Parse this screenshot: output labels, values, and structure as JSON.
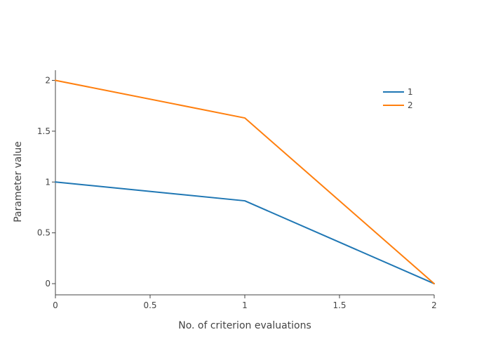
{
  "chart_data": {
    "type": "line",
    "title": "",
    "xlabel": "No. of criterion evaluations",
    "ylabel": "Parameter value",
    "xlim": [
      0,
      2
    ],
    "ylim": [
      -0.11,
      2.1
    ],
    "xticks": [
      0,
      0.5,
      1,
      1.5,
      2
    ],
    "xtick_labels": [
      "0",
      "0.5",
      "1",
      "1.5",
      "2"
    ],
    "yticks": [
      0,
      0.5,
      1,
      1.5,
      2
    ],
    "ytick_labels": [
      "0",
      "0.5",
      "1",
      "1.5",
      "2"
    ],
    "grid": false,
    "legend_position": "top-right",
    "series": [
      {
        "name": "1",
        "color": "#1f77b4",
        "x": [
          0,
          1,
          2
        ],
        "y": [
          1,
          0.815,
          0
        ]
      },
      {
        "name": "2",
        "color": "#ff7f0e",
        "x": [
          0,
          1,
          2
        ],
        "y": [
          2,
          1.63,
          0
        ]
      }
    ]
  }
}
